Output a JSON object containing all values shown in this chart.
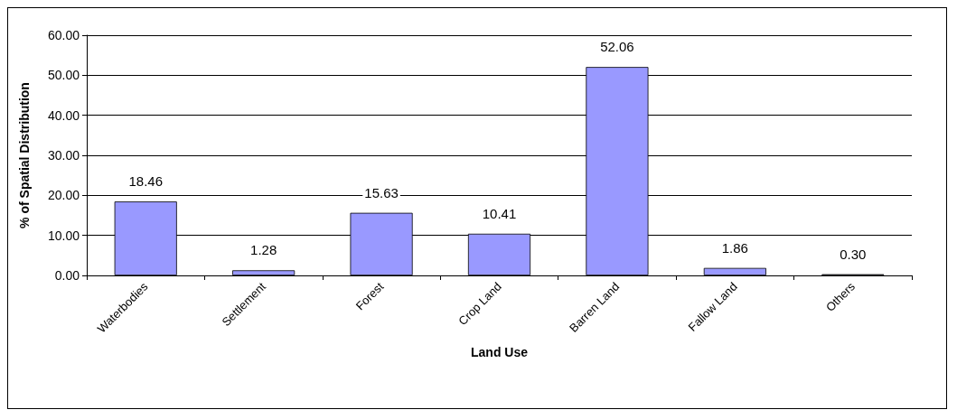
{
  "chart_data": {
    "type": "bar",
    "xlabel": "Land Use",
    "ylabel": "% of Spatial Distribution",
    "categories": [
      "Waterbodies",
      "Settlement",
      "Forest",
      "Crop Land",
      "Barren Land",
      "Fallow Land",
      "Others"
    ],
    "values": [
      18.46,
      1.28,
      15.63,
      10.41,
      52.06,
      1.86,
      0.3
    ],
    "value_labels": [
      "18.46",
      "1.28",
      "15.63",
      "10.41",
      "52.06",
      "1.86",
      "0.30"
    ],
    "color": "#9999ff",
    "ylim": [
      0,
      60
    ],
    "yticks": [
      {
        "value": 0,
        "label": "0.00"
      },
      {
        "value": 10,
        "label": "10.00"
      },
      {
        "value": 20,
        "label": "20.00"
      },
      {
        "value": 30,
        "label": "30.00"
      },
      {
        "value": 40,
        "label": "40.00"
      },
      {
        "value": 50,
        "label": "50.00"
      },
      {
        "value": 60,
        "label": "60.00"
      }
    ],
    "grid": "y"
  }
}
